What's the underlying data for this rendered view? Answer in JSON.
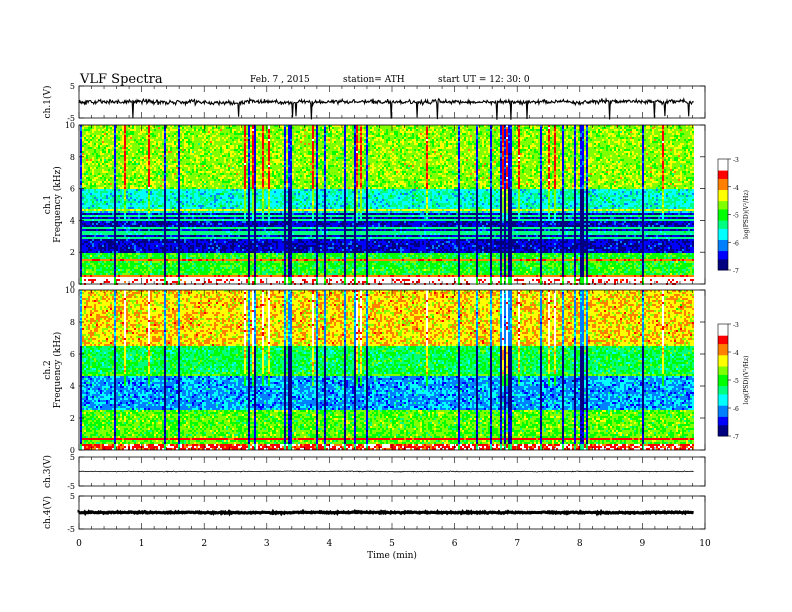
{
  "header": {
    "title": "VLF  Spectra",
    "date": "Feb. 7  , 2015",
    "station": "station= ATH",
    "start": "start  UT  =    12: 30: 0"
  },
  "chart_data": [
    {
      "type": "line",
      "ylabel": "ch.1(V)",
      "ylim": [
        -5,
        5
      ],
      "yticks": [
        "5",
        "-5"
      ],
      "x_minutes_span": [
        0,
        9.82
      ],
      "baseline_v": 0.0,
      "noise_band_v": [
        -1.0,
        1.0
      ],
      "spikes": "frequent downward spikes to about -5 V"
    },
    {
      "type": "heatmap",
      "ylabel": "Frequency  (kHz)",
      "channel": "ch.1",
      "ylim": [
        0,
        10
      ],
      "yticks": [
        "0",
        "2",
        "4",
        "6",
        "8",
        "10"
      ],
      "colorbar": {
        "label": "log(PSD)(V²/Hz)",
        "range": [
          -7,
          -3
        ],
        "ticks": [
          "-3",
          "-4",
          "-5",
          "-6",
          "-7"
        ]
      },
      "bands_khz": [
        {
          "from": 0,
          "to": 0.4,
          "logpsd": -3.2
        },
        {
          "from": 0.4,
          "to": 2.0,
          "logpsd": -5.0
        },
        {
          "from": 2.0,
          "to": 4.5,
          "logpsd": -6.6
        },
        {
          "from": 4.5,
          "to": 6.0,
          "logpsd": -5.6
        },
        {
          "from": 6.0,
          "to": 10.0,
          "logpsd": -4.6
        }
      ]
    },
    {
      "type": "heatmap",
      "ylabel": "Frequency  (kHz)",
      "channel": "ch.2",
      "ylim": [
        0,
        10
      ],
      "yticks": [
        "0",
        "2",
        "4",
        "6",
        "8",
        "10"
      ],
      "colorbar": {
        "label": "log(PSD)(V²/Hz)",
        "range": [
          -7,
          -3
        ],
        "ticks": [
          "-3",
          "-4",
          "-5",
          "-6",
          "-7"
        ]
      },
      "bands_khz": [
        {
          "from": 0,
          "to": 0.4,
          "logpsd": -3.5
        },
        {
          "from": 0.4,
          "to": 2.5,
          "logpsd": -4.8
        },
        {
          "from": 2.5,
          "to": 4.8,
          "logpsd": -6.0
        },
        {
          "from": 4.8,
          "to": 6.5,
          "logpsd": -5.2
        },
        {
          "from": 6.5,
          "to": 10.0,
          "logpsd": -4.2
        }
      ]
    },
    {
      "type": "line",
      "ylabel": "ch.3(V)",
      "ylim": [
        -5,
        5
      ],
      "yticks": [
        "5",
        "-5"
      ],
      "baseline_v": 0.0,
      "noise_band_v": [
        -0.2,
        0.2
      ]
    },
    {
      "type": "line",
      "ylabel": "ch.4(V)",
      "ylim": [
        -5,
        5
      ],
      "yticks": [
        "5",
        "-5"
      ],
      "baseline_v": 0.0,
      "noise_band_v": [
        -0.3,
        0.3
      ]
    }
  ],
  "xaxis": {
    "label": "Time  (min)",
    "range": [
      0,
      10
    ],
    "ticks": [
      "0",
      "1",
      "2",
      "3",
      "4",
      "5",
      "6",
      "7",
      "8",
      "9",
      "10"
    ]
  },
  "colors": {
    "scale": [
      "#000080",
      "#0000ff",
      "#0080ff",
      "#00ffff",
      "#00ff80",
      "#00ff00",
      "#80ff00",
      "#ffff00",
      "#ff8000",
      "#ff0000",
      "#ffffff"
    ]
  }
}
